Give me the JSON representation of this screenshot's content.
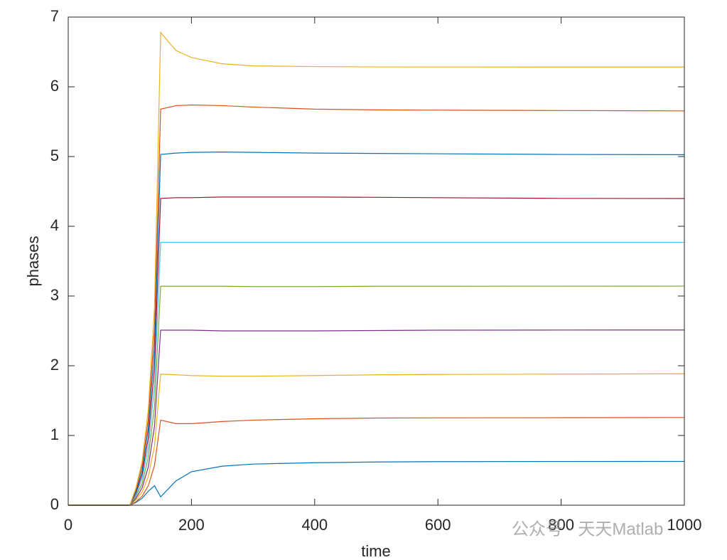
{
  "chart_data": {
    "type": "line",
    "xlabel": "time",
    "ylabel": "phases",
    "x": [
      0,
      100,
      110,
      120,
      130,
      140,
      150,
      175,
      200,
      250,
      300,
      400,
      500,
      600,
      800,
      1000
    ],
    "series": [
      {
        "color": "#0072BD",
        "values": [
          0,
          0,
          0.04,
          0.1,
          0.2,
          0.28,
          0.12,
          0.35,
          0.48,
          0.56,
          0.59,
          0.61,
          0.62,
          0.625,
          0.627,
          0.628
        ]
      },
      {
        "color": "#D95319",
        "values": [
          0,
          0,
          0.05,
          0.13,
          0.28,
          0.57,
          1.22,
          1.17,
          1.17,
          1.2,
          1.22,
          1.24,
          1.25,
          1.253,
          1.255,
          1.257
        ]
      },
      {
        "color": "#EDB120",
        "values": [
          0,
          0,
          0.08,
          0.19,
          0.41,
          0.85,
          1.88,
          1.87,
          1.86,
          1.85,
          1.85,
          1.86,
          1.87,
          1.875,
          1.88,
          1.885
        ]
      },
      {
        "color": "#7E2F8E",
        "values": [
          0,
          0,
          0.1,
          0.25,
          0.55,
          1.13,
          2.51,
          2.51,
          2.51,
          2.5,
          2.5,
          2.5,
          2.505,
          2.51,
          2.512,
          2.513
        ]
      },
      {
        "color": "#77AC30",
        "values": [
          0,
          0,
          0.13,
          0.31,
          0.69,
          1.41,
          3.14,
          3.14,
          3.14,
          3.14,
          3.135,
          3.135,
          3.14,
          3.14,
          3.141,
          3.142
        ]
      },
      {
        "color": "#4DBEEE",
        "values": [
          0,
          0,
          0.15,
          0.38,
          0.83,
          1.7,
          3.77,
          3.77,
          3.77,
          3.77,
          3.77,
          3.77,
          3.77,
          3.77,
          3.77,
          3.77
        ]
      },
      {
        "color": "#A2142F",
        "values": [
          0,
          0,
          0.18,
          0.44,
          0.97,
          1.98,
          4.4,
          4.41,
          4.41,
          4.42,
          4.42,
          4.42,
          4.415,
          4.41,
          4.4,
          4.398
        ]
      },
      {
        "color": "#0072BD",
        "values": [
          0,
          0,
          0.2,
          0.5,
          1.11,
          2.26,
          5.03,
          5.05,
          5.06,
          5.065,
          5.06,
          5.05,
          5.045,
          5.04,
          5.03,
          5.027
        ]
      },
      {
        "color": "#D95319",
        "values": [
          0,
          0,
          0.23,
          0.57,
          1.24,
          2.54,
          5.68,
          5.73,
          5.74,
          5.73,
          5.71,
          5.68,
          5.67,
          5.665,
          5.66,
          5.655
        ]
      },
      {
        "color": "#EDB120",
        "values": [
          0,
          0,
          0.25,
          0.63,
          1.38,
          2.83,
          6.78,
          6.52,
          6.42,
          6.33,
          6.3,
          6.29,
          6.285,
          6.284,
          6.283,
          6.283
        ]
      }
    ],
    "xlim": [
      0,
      1000
    ],
    "xticks": [
      0,
      200,
      400,
      600,
      800,
      1000
    ],
    "ylim": [
      0,
      7
    ],
    "yticks": [
      0,
      1,
      2,
      3,
      4,
      5,
      6,
      7
    ],
    "watermark": "公众号 · 天天Matlab"
  }
}
